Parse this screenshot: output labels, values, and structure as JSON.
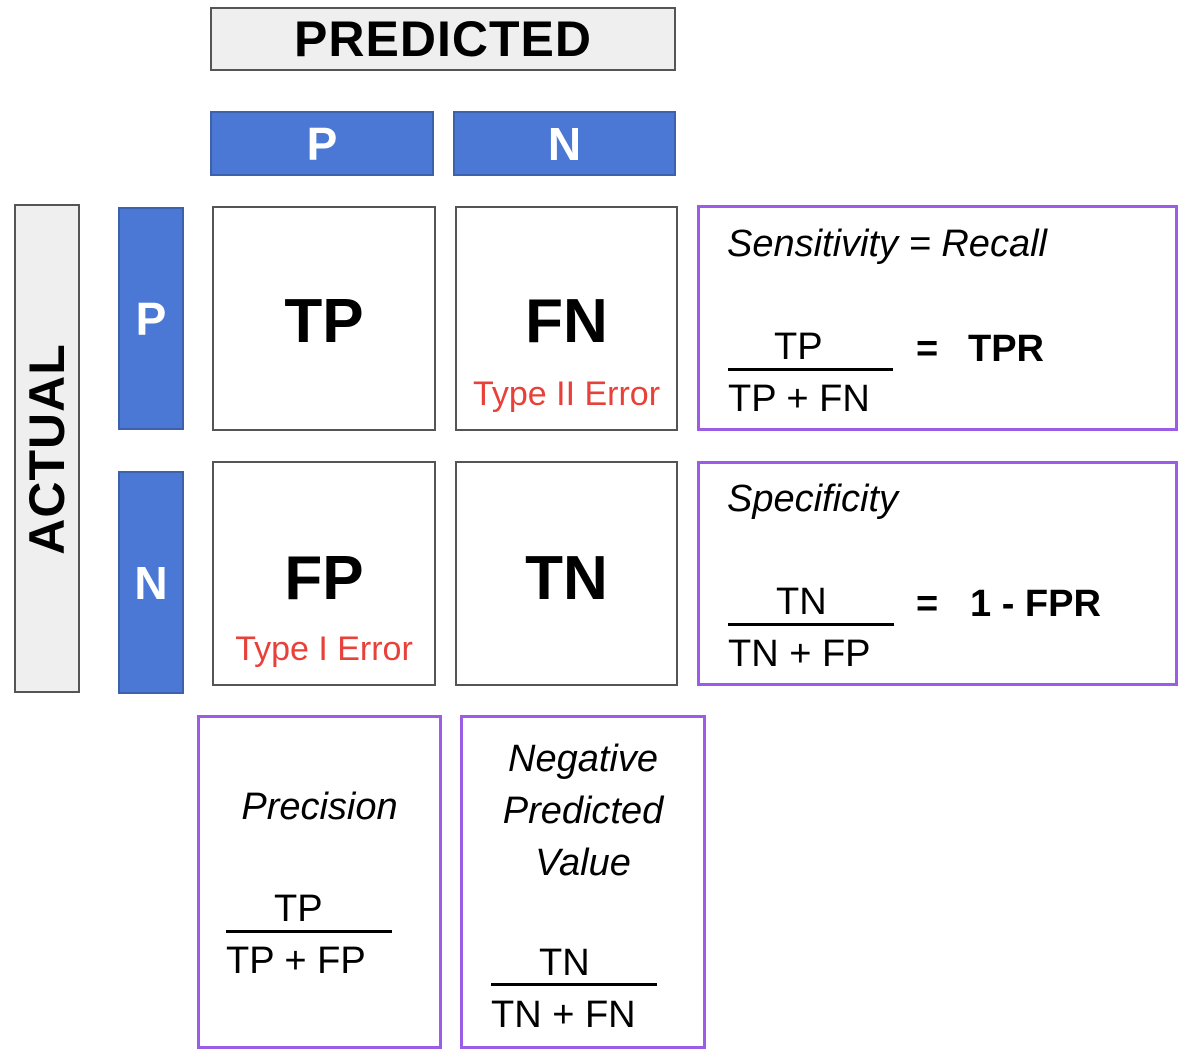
{
  "predicted_header": "PREDICTED",
  "actual_header": "ACTUAL",
  "column_labels": [
    "P",
    "N"
  ],
  "row_labels": [
    "P",
    "N"
  ],
  "cells": {
    "tp": {
      "label": "TP"
    },
    "fn": {
      "label": "FN",
      "error": "Type II Error"
    },
    "fp": {
      "label": "FP",
      "error": "Type I Error"
    },
    "tn": {
      "label": "TN"
    }
  },
  "metrics": {
    "sensitivity": {
      "title": "Sensitivity = Recall",
      "numerator": "TP",
      "denominator": "TP + FN",
      "equals": "=",
      "result": "TPR"
    },
    "specificity": {
      "title": "Specificity",
      "numerator": "TN",
      "denominator": "TN + FP",
      "equals": "=",
      "result": "1 - FPR"
    },
    "precision": {
      "title": "Precision",
      "numerator": "TP",
      "denominator": "TP + FP"
    },
    "npv": {
      "title_lines": [
        "Negative",
        "Predicted",
        "Value"
      ],
      "numerator": "TN",
      "denominator": "TN + FN"
    }
  },
  "colors": {
    "blue": "#4a78d4",
    "error_red": "#e8413a",
    "metric_border": "#9b5ce6",
    "header_gray": "#efefef"
  }
}
